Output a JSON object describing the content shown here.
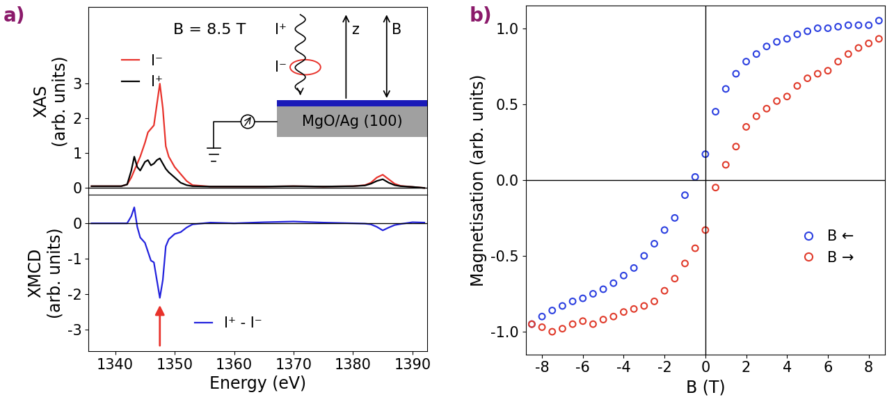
{
  "chart_data": [
    {
      "type": "line",
      "title": "a)",
      "y_label": "XAS\n(arb. units)",
      "xlim": [
        1335.5,
        1392.5
      ],
      "xticks": [
        1340,
        1350,
        1360,
        1370,
        1380,
        1390
      ],
      "ylim": [
        -0.2,
        5.2
      ],
      "yticks": [
        0,
        1,
        2,
        3
      ],
      "tick_labels": "y",
      "legend": "upper left",
      "annotations": [
        "B = 8.5 T",
        "MgO/Ag (100)",
        "z",
        "B",
        "I⁺",
        "I⁻"
      ],
      "series": [
        {
          "name": "I⁻",
          "color": "#e8322b",
          "x": [
            1336,
            1338,
            1340,
            1341,
            1342,
            1342.7,
            1343.2,
            1343.7,
            1344.2,
            1345,
            1345.5,
            1346,
            1346.5,
            1347,
            1347.5,
            1348,
            1348.5,
            1349,
            1350,
            1351,
            1352,
            1353,
            1356,
            1360,
            1365,
            1370,
            1375,
            1380,
            1382,
            1383,
            1384,
            1385,
            1386,
            1387,
            1388,
            1390,
            1392
          ],
          "values": [
            0.05,
            0.05,
            0.05,
            0.05,
            0.1,
            0.3,
            0.5,
            0.7,
            0.9,
            1.3,
            1.6,
            1.7,
            1.8,
            2.4,
            3.0,
            2.3,
            1.2,
            0.9,
            0.6,
            0.4,
            0.2,
            0.08,
            0.04,
            0.04,
            0.04,
            0.05,
            0.04,
            0.05,
            0.08,
            0.15,
            0.3,
            0.38,
            0.25,
            0.12,
            0.06,
            0.03,
            0.0
          ]
        },
        {
          "name": "I⁺",
          "color": "#000000",
          "x": [
            1336,
            1338,
            1340,
            1341,
            1342,
            1342.7,
            1343.2,
            1343.7,
            1344.2,
            1345,
            1345.5,
            1346,
            1346.5,
            1347,
            1347.5,
            1348,
            1348.5,
            1349,
            1350,
            1351,
            1352,
            1353,
            1356,
            1360,
            1365,
            1370,
            1375,
            1380,
            1382,
            1383,
            1384,
            1385,
            1386,
            1387,
            1388,
            1390,
            1392
          ],
          "values": [
            0.05,
            0.05,
            0.05,
            0.05,
            0.1,
            0.5,
            0.9,
            0.6,
            0.5,
            0.75,
            0.8,
            0.65,
            0.7,
            0.8,
            0.85,
            0.7,
            0.55,
            0.45,
            0.3,
            0.15,
            0.08,
            0.05,
            0.04,
            0.04,
            0.04,
            0.05,
            0.04,
            0.05,
            0.07,
            0.12,
            0.2,
            0.25,
            0.15,
            0.08,
            0.05,
            0.03,
            0.0
          ]
        }
      ]
    },
    {
      "type": "line",
      "x_label": "Energy (eV)",
      "y_label": "XMCD\n(arb. units)",
      "xlim": [
        1335.5,
        1392.5
      ],
      "xticks": [
        1340,
        1350,
        1360,
        1370,
        1380,
        1390
      ],
      "ylim": [
        -3.6,
        0.8
      ],
      "yticks": [
        -3,
        -2,
        -1,
        0
      ],
      "legend": "lower right",
      "series": [
        {
          "name": "I⁺ - I⁻",
          "color": "#2222dd",
          "x": [
            1336,
            1338,
            1340,
            1341,
            1342,
            1342.7,
            1343.2,
            1343.7,
            1344.2,
            1345,
            1345.5,
            1346,
            1346.5,
            1347,
            1347.5,
            1348,
            1348.5,
            1349,
            1350,
            1351,
            1352,
            1353,
            1356,
            1360,
            1365,
            1370,
            1375,
            1380,
            1382,
            1383,
            1384,
            1385,
            1386,
            1387,
            1388,
            1390,
            1392
          ],
          "values": [
            0,
            0,
            0,
            0,
            0,
            0.2,
            0.45,
            -0.1,
            -0.4,
            -0.55,
            -0.8,
            -1.05,
            -1.1,
            -1.6,
            -2.1,
            -1.6,
            -0.65,
            -0.45,
            -0.3,
            -0.25,
            -0.12,
            -0.03,
            0.02,
            0.0,
            0.03,
            0.05,
            0.02,
            0.0,
            -0.01,
            -0.03,
            -0.1,
            -0.2,
            -0.12,
            -0.05,
            -0.02,
            0.03,
            0.02
          ]
        }
      ]
    },
    {
      "type": "scatter",
      "title": "b)",
      "x_label": "B (T)",
      "y_label": "Magnetisation (arb. units)",
      "xlim": [
        -8.8,
        8.8
      ],
      "xticks": [
        -8,
        -6,
        -4,
        -2,
        0,
        2,
        4,
        6,
        8
      ],
      "ylim": [
        -1.15,
        1.15
      ],
      "yticks": [
        -1.0,
        -0.5,
        0.0,
        0.5,
        1.0
      ],
      "legend": "lower right",
      "marker": "o",
      "series": [
        {
          "name": "B ←",
          "color": "#2b3fe0",
          "x": [
            8.5,
            8,
            7.5,
            7,
            6.5,
            6,
            5.5,
            5,
            4.5,
            4,
            3.5,
            3,
            2.5,
            2,
            1.5,
            1,
            0.5,
            0,
            -0.5,
            -1,
            -1.5,
            -2,
            -2.5,
            -3,
            -3.5,
            -4,
            -4.5,
            -5,
            -5.5,
            -6,
            -6.5,
            -7,
            -7.5,
            -8,
            -8.5
          ],
          "values": [
            1.05,
            1.02,
            1.02,
            1.02,
            1.01,
            1.0,
            1.0,
            0.98,
            0.96,
            0.93,
            0.91,
            0.88,
            0.83,
            0.78,
            0.7,
            0.6,
            0.45,
            0.17,
            0.02,
            -0.1,
            -0.25,
            -0.33,
            -0.42,
            -0.5,
            -0.58,
            -0.63,
            -0.68,
            -0.72,
            -0.75,
            -0.78,
            -0.8,
            -0.83,
            -0.86,
            -0.9,
            -0.95
          ]
        },
        {
          "name": "B →",
          "color": "#e03a2a",
          "x": [
            -8.5,
            -8,
            -7.5,
            -7,
            -6.5,
            -6,
            -5.5,
            -5,
            -4.5,
            -4,
            -3.5,
            -3,
            -2.5,
            -2,
            -1.5,
            -1,
            -0.5,
            0,
            0.5,
            1,
            1.5,
            2,
            2.5,
            3,
            3.5,
            4,
            4.5,
            5,
            5.5,
            6,
            6.5,
            7,
            7.5,
            8,
            8.5
          ],
          "values": [
            -0.95,
            -0.97,
            -1.0,
            -0.98,
            -0.95,
            -0.93,
            -0.95,
            -0.92,
            -0.9,
            -0.87,
            -0.85,
            -0.83,
            -0.8,
            -0.73,
            -0.65,
            -0.55,
            -0.45,
            -0.33,
            -0.05,
            0.1,
            0.22,
            0.35,
            0.42,
            0.47,
            0.52,
            0.55,
            0.62,
            0.67,
            0.7,
            0.72,
            0.78,
            0.83,
            0.87,
            0.9,
            0.93
          ]
        }
      ]
    }
  ]
}
